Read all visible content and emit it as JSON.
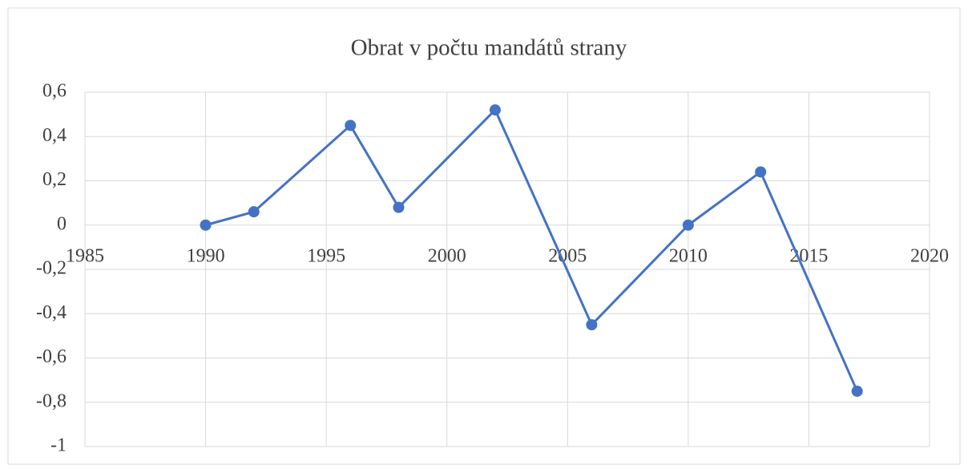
{
  "chart_data": {
    "type": "line",
    "title": "Obrat v počtu mandátů strany",
    "x": [
      1990,
      1992,
      1996,
      1998,
      2002,
      2006,
      2010,
      2013,
      2017
    ],
    "values": [
      0,
      0.06,
      0.45,
      0.08,
      0.52,
      -0.45,
      0,
      0.24,
      -0.75
    ],
    "color": "#4472c4",
    "xlim": [
      1985,
      2020
    ],
    "xticks": [
      1985,
      1990,
      1995,
      2000,
      2005,
      2010,
      2015,
      2020
    ],
    "ylim": [
      -1,
      0.6
    ],
    "yticks": [
      {
        "value": 0.6,
        "label": "0,6"
      },
      {
        "value": 0.4,
        "label": "0,4"
      },
      {
        "value": 0.2,
        "label": "0,2"
      },
      0,
      {
        "value": -0.2,
        "label": "-0,2"
      },
      {
        "value": -0.4,
        "label": "-0,4"
      },
      {
        "value": -0.6,
        "label": "-0,6"
      },
      {
        "value": -0.8,
        "label": "-0,8"
      },
      -1
    ],
    "grid": true,
    "markers": true
  }
}
